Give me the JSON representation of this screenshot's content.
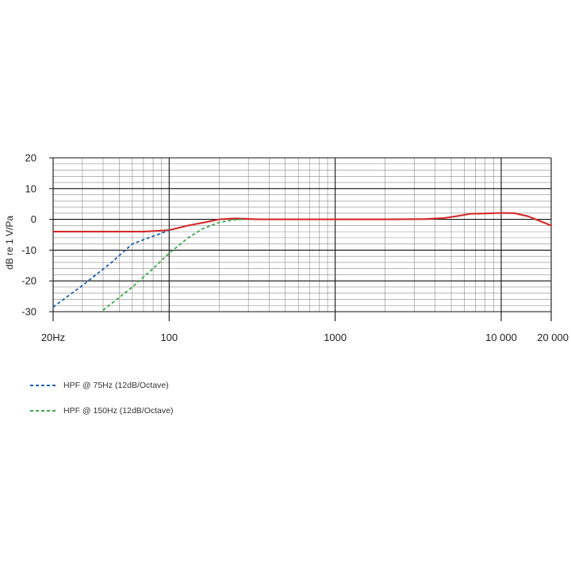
{
  "chart_data": {
    "type": "line",
    "title": "",
    "xlabel": "",
    "ylabel": "dB re 1 V/Pa",
    "xscale": "log",
    "xlim": [
      20,
      20000
    ],
    "ylim": [
      -30,
      20
    ],
    "grid": true,
    "x_tick_labels": [
      {
        "value": 20,
        "label": "20Hz"
      },
      {
        "value": 100,
        "label": "100"
      },
      {
        "value": 1000,
        "label": "1000"
      },
      {
        "value": 10000,
        "label": "10 000"
      },
      {
        "value": 20000,
        "label": "20 000"
      }
    ],
    "y_tick_labels": [
      {
        "value": 20,
        "label": "20"
      },
      {
        "value": 10,
        "label": "10"
      },
      {
        "value": 0,
        "label": "0"
      },
      {
        "value": -10,
        "label": "-10"
      },
      {
        "value": -20,
        "label": "-20"
      },
      {
        "value": -30,
        "label": "-30"
      }
    ],
    "legend_position": "bottom-left",
    "series": [
      {
        "color": "#d42a2a",
        "style": "solid",
        "points": [
          [
            20,
            -4
          ],
          [
            40,
            -4
          ],
          [
            70,
            -4
          ],
          [
            100,
            -3.5
          ],
          [
            130,
            -2
          ],
          [
            170,
            -0.8
          ],
          [
            200,
            0
          ],
          [
            250,
            0.3
          ],
          [
            350,
            0
          ],
          [
            600,
            0
          ],
          [
            1000,
            0
          ],
          [
            2000,
            0
          ],
          [
            3500,
            0.1
          ],
          [
            4500,
            0.4
          ],
          [
            5500,
            1.1
          ],
          [
            6500,
            1.8
          ],
          [
            8000,
            1.9
          ],
          [
            10000,
            2.1
          ],
          [
            12000,
            2
          ],
          [
            14500,
            1
          ],
          [
            17000,
            -0.5
          ],
          [
            20000,
            -2
          ]
        ]
      },
      {
        "name": "HPF @ 75Hz (12dB/Octave)",
        "color": "#1f5fb0",
        "style": "dashed",
        "points": [
          [
            20,
            -28.5
          ],
          [
            30,
            -21.5
          ],
          [
            45,
            -14
          ],
          [
            60,
            -8
          ],
          [
            75,
            -6
          ],
          [
            90,
            -4.5
          ],
          [
            100,
            -3.5
          ]
        ]
      },
      {
        "name": "HPF @ 150Hz (12dB/Octave)",
        "color": "#3aa64a",
        "style": "dashed",
        "points": [
          [
            40,
            -29.5
          ],
          [
            60,
            -22
          ],
          [
            80,
            -16
          ],
          [
            100,
            -11
          ],
          [
            130,
            -6
          ],
          [
            160,
            -3
          ],
          [
            200,
            -1
          ],
          [
            250,
            -0.1
          ],
          [
            280,
            0
          ]
        ]
      }
    ]
  }
}
